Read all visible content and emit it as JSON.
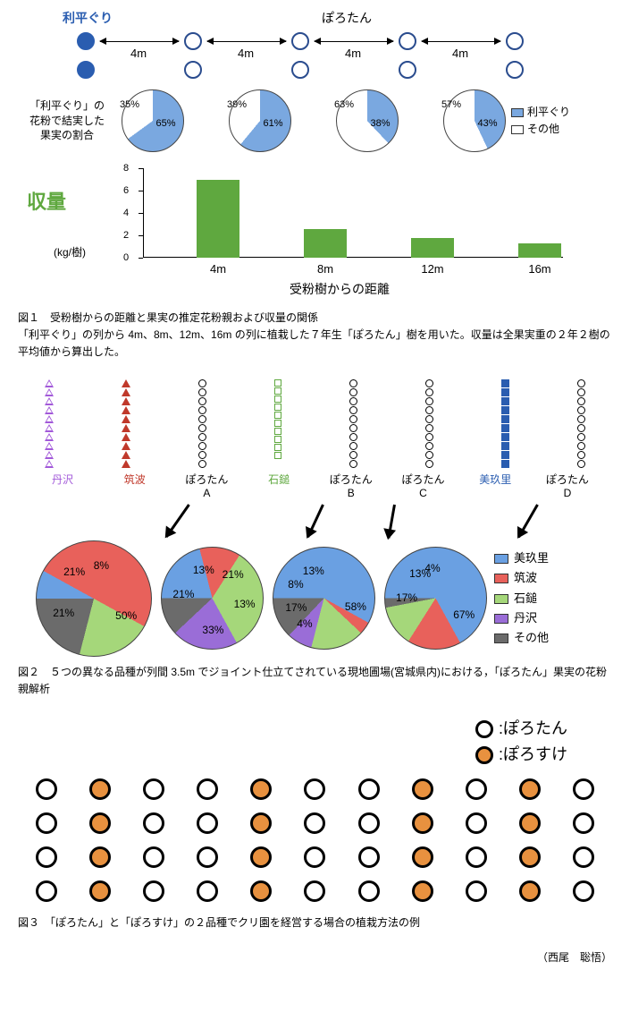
{
  "fig1": {
    "top": {
      "left_label": "利平ぐり",
      "left_label_color": "#2a5db0",
      "right_label": "ぽろたん",
      "distance_label": "4m",
      "circle_fill_color": "#2a5db0",
      "circle_stroke_color": "#2a4c8e",
      "circle_d": 20
    },
    "pies": {
      "side_label": "「利平ぐり」の\n花粉で結実した\n果実の割合",
      "diameter": 70,
      "fill_color": "#7aa8e0",
      "empty_color": "#ffffff",
      "data": [
        {
          "rihei": 65,
          "other": 35
        },
        {
          "rihei": 61,
          "other": 39
        },
        {
          "rihei": 38,
          "other": 63
        },
        {
          "rihei": 43,
          "other": 57
        }
      ],
      "legend": [
        {
          "label": "利平ぐり",
          "color": "#7aa8e0"
        },
        {
          "label": "その他",
          "color": "#ffffff"
        }
      ]
    },
    "bar": {
      "ylabel": "収量",
      "ylabel_color": "#5fa83f",
      "yunit": "(kg/樹)",
      "ylim": [
        0,
        8
      ],
      "ytick_step": 2,
      "bar_color": "#5fa83f",
      "xlabel": "受粉樹からの距離",
      "categories": [
        "4m",
        "8m",
        "12m",
        "16m"
      ],
      "values": [
        7.0,
        2.6,
        1.8,
        1.3
      ]
    },
    "caption": "図１　受粉樹からの距離と果実の推定花粉親および収量の関係\n「利平ぐり」の列から 4m、8m、12m、16m の列に植栽した７年生「ぽろたん」樹を用いた。収量は全果実重の２年２樹の平均値から算出した。"
  },
  "fig2": {
    "columns": [
      {
        "label": "丹沢",
        "label_color": "#a259d9",
        "sym": "tri-open",
        "sym_color": "#a259d9"
      },
      {
        "label": "筑波",
        "label_color": "#c0392b",
        "sym": "tri-fill",
        "sym_color": "#c0392b"
      },
      {
        "label": "ぽろたん\nA",
        "label_color": "#000",
        "sym": "circle-open",
        "sym_color": "#000"
      },
      {
        "label": "石鎚",
        "label_color": "#5fa83f",
        "sym": "square-open",
        "sym_color": "#5fa83f"
      },
      {
        "label": "ぽろたん\nB",
        "label_color": "#000",
        "sym": "circle-open",
        "sym_color": "#000"
      },
      {
        "label": "ぽろたん\nC",
        "label_color": "#000",
        "sym": "circle-open",
        "sym_color": "#000"
      },
      {
        "label": "美玖里",
        "label_color": "#2a5db0",
        "sym": "square-fill",
        "sym_color": "#2a5db0"
      },
      {
        "label": "ぽろたん\nD",
        "label_color": "#000",
        "sym": "circle-open",
        "sym_color": "#000"
      }
    ],
    "n_symbols_per_col": 10,
    "pies": {
      "diameters": [
        130,
        115,
        115,
        115
      ],
      "data": [
        {
          "slices": [
            {
              "label": "8%",
              "value": 8,
              "color": "#6aa0e2"
            },
            {
              "label": "50%",
              "value": 50,
              "color": "#e8615b"
            },
            {
              "label": "21%",
              "value": 21,
              "color": "#a5d77a"
            },
            {
              "label": "21%",
              "value": 21,
              "color": "#6b6b6b"
            }
          ]
        },
        {
          "slices": [
            {
              "label": "21%",
              "value": 21,
              "color": "#6aa0e2"
            },
            {
              "label": "13%",
              "value": 13,
              "color": "#e8615b"
            },
            {
              "label": "33%",
              "value": 33,
              "color": "#a5d77a"
            },
            {
              "label": "21%",
              "value": 21,
              "color": "#9a6dd7"
            },
            {
              "label": "13%",
              "value": 13,
              "color": "#6b6b6b"
            }
          ]
        },
        {
          "slices": [
            {
              "label": "58%",
              "value": 58,
              "color": "#6aa0e2"
            },
            {
              "label": "4%",
              "value": 4,
              "color": "#e8615b"
            },
            {
              "label": "17%",
              "value": 17,
              "color": "#a5d77a"
            },
            {
              "label": "8%",
              "value": 8,
              "color": "#9a6dd7"
            },
            {
              "label": "13%",
              "value": 13,
              "color": "#6b6b6b"
            }
          ]
        },
        {
          "slices": [
            {
              "label": "67%",
              "value": 67,
              "color": "#6aa0e2"
            },
            {
              "label": "17%",
              "value": 17,
              "color": "#e8615b"
            },
            {
              "label": "13%",
              "value": 13,
              "color": "#a5d77a"
            },
            {
              "label": "4%",
              "value": 4,
              "color": "#6b6b6b"
            }
          ]
        }
      ],
      "legend": [
        {
          "label": "美玖里",
          "color": "#6aa0e2"
        },
        {
          "label": "筑波",
          "color": "#e8615b"
        },
        {
          "label": "石鎚",
          "color": "#a5d77a"
        },
        {
          "label": "丹沢",
          "color": "#9a6dd7"
        },
        {
          "label": "その他",
          "color": "#6b6b6b"
        }
      ]
    },
    "caption": "図２　５つの異なる品種が列間 3.5m でジョイント仕立てされている現地圃場(宮城県内)における，「ぽろたん」果実の花粉親解析"
  },
  "fig3": {
    "legend": [
      {
        "label": ":ぽろたん",
        "fill": false
      },
      {
        "label": ":ぽろすけ",
        "fill": true
      }
    ],
    "fill_color": "#e8913f",
    "cols": 11,
    "rows": [
      [
        0,
        1,
        0,
        0,
        1,
        0,
        0,
        1,
        0,
        1,
        0
      ],
      [
        0,
        1,
        0,
        0,
        1,
        0,
        0,
        1,
        0,
        1,
        0
      ],
      [
        0,
        1,
        0,
        0,
        1,
        0,
        0,
        1,
        0,
        1,
        0
      ],
      [
        0,
        1,
        0,
        0,
        1,
        0,
        0,
        1,
        0,
        1,
        0
      ]
    ],
    "caption": "図３　「ぽろたん」と「ぽろすけ」の２品種でクリ園を経営する場合の植栽方法の例"
  },
  "author": "（西尾　聡悟）"
}
